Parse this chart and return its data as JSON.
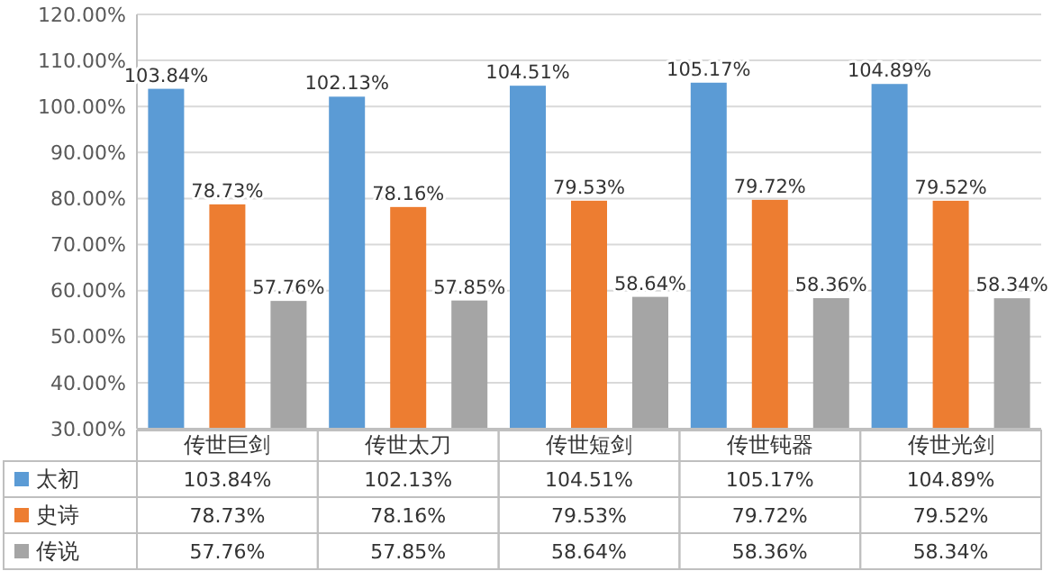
{
  "chart_data": {
    "type": "bar",
    "categories": [
      "传世巨剑",
      "传世太刀",
      "传世短剑",
      "传世钝器",
      "传世光剑"
    ],
    "series": [
      {
        "name": "太初",
        "color": "#5b9bd5",
        "values": [
          103.84,
          102.13,
          104.51,
          105.17,
          104.89
        ],
        "value_labels": [
          "103.84%",
          "102.13%",
          "104.51%",
          "105.17%",
          "104.89%"
        ]
      },
      {
        "name": "史诗",
        "color": "#ed7d31",
        "values": [
          78.73,
          78.16,
          79.53,
          79.72,
          79.52
        ],
        "value_labels": [
          "78.73%",
          "78.16%",
          "79.53%",
          "79.72%",
          "79.52%"
        ]
      },
      {
        "name": "传说",
        "color": "#a5a5a5",
        "values": [
          57.76,
          57.85,
          58.64,
          58.36,
          58.34
        ],
        "value_labels": [
          "57.76%",
          "57.85%",
          "58.64%",
          "58.36%",
          "58.34%"
        ]
      }
    ],
    "ylim": [
      30,
      120
    ],
    "yticks": [
      {
        "value": 30,
        "label": "30.00%"
      },
      {
        "value": 40,
        "label": "40.00%"
      },
      {
        "value": 50,
        "label": "50.00%"
      },
      {
        "value": 60,
        "label": "60.00%"
      },
      {
        "value": 70,
        "label": "70.00%"
      },
      {
        "value": 80,
        "label": "80.00%"
      },
      {
        "value": 90,
        "label": "90.00%"
      },
      {
        "value": 100,
        "label": "100.00%"
      },
      {
        "value": 110,
        "label": "110.00%"
      },
      {
        "value": 120,
        "label": "120.00%"
      }
    ],
    "grid": "y",
    "legend": "bottom"
  }
}
